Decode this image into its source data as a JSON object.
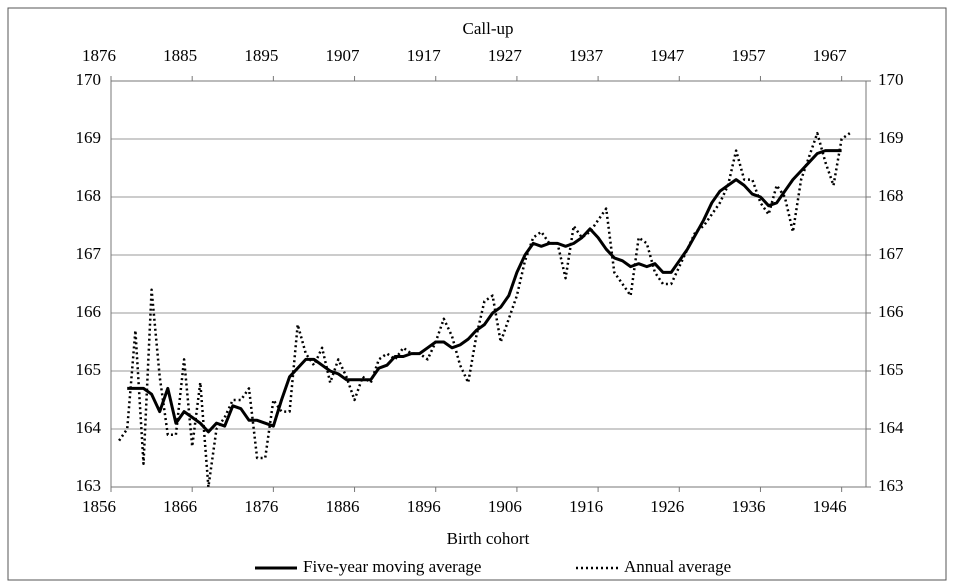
{
  "chart_data": {
    "type": "line",
    "title": "Call-up",
    "x_label": "Birth cohort",
    "x": [
      1857,
      1858,
      1859,
      1860,
      1861,
      1862,
      1863,
      1864,
      1865,
      1866,
      1867,
      1868,
      1869,
      1870,
      1871,
      1872,
      1873,
      1874,
      1875,
      1876,
      1877,
      1878,
      1879,
      1880,
      1881,
      1882,
      1883,
      1884,
      1885,
      1886,
      1887,
      1888,
      1889,
      1890,
      1891,
      1892,
      1893,
      1894,
      1895,
      1896,
      1897,
      1898,
      1899,
      1900,
      1901,
      1902,
      1903,
      1904,
      1905,
      1906,
      1907,
      1908,
      1909,
      1910,
      1911,
      1912,
      1913,
      1914,
      1915,
      1916,
      1917,
      1918,
      1919,
      1920,
      1921,
      1922,
      1923,
      1924,
      1925,
      1926,
      1927,
      1928,
      1929,
      1930,
      1931,
      1932,
      1933,
      1934,
      1935,
      1936,
      1937,
      1938,
      1939,
      1940,
      1941,
      1942,
      1943,
      1944,
      1945,
      1946,
      1947
    ],
    "series": [
      {
        "name": "Five-year moving average",
        "color": "#000000",
        "dash": "solid",
        "values": [
          null,
          164.7,
          164.7,
          164.7,
          164.6,
          164.3,
          164.7,
          164.1,
          164.3,
          164.2,
          164.1,
          163.95,
          164.1,
          164.05,
          164.4,
          164.35,
          164.15,
          164.15,
          164.1,
          164.05,
          164.5,
          164.9,
          165.05,
          165.2,
          165.2,
          165.1,
          165.0,
          164.95,
          164.85,
          164.85,
          164.85,
          164.85,
          165.05,
          165.1,
          165.25,
          165.25,
          165.3,
          165.3,
          165.4,
          165.5,
          165.5,
          165.4,
          165.45,
          165.55,
          165.7,
          165.8,
          166.0,
          166.1,
          166.3,
          166.7,
          167.0,
          167.2,
          167.15,
          167.2,
          167.2,
          167.15,
          167.2,
          167.3,
          167.45,
          167.3,
          167.1,
          166.95,
          166.9,
          166.8,
          166.85,
          166.8,
          166.85,
          166.7,
          166.7,
          166.9,
          167.1,
          167.35,
          167.6,
          167.9,
          168.1,
          168.2,
          168.3,
          168.2,
          168.05,
          168.0,
          167.85,
          167.9,
          168.1,
          168.3,
          168.45,
          168.6,
          168.75,
          168.8,
          168.8,
          168.8,
          null
        ]
      },
      {
        "name": "Annual average",
        "color": "#000000",
        "dash": "dotted",
        "values": [
          163.8,
          164.0,
          165.7,
          163.4,
          166.4,
          164.9,
          163.9,
          163.9,
          165.2,
          163.7,
          164.8,
          163.0,
          164.0,
          164.2,
          164.5,
          164.5,
          164.7,
          163.5,
          163.5,
          164.5,
          164.3,
          164.3,
          165.8,
          165.3,
          165.1,
          165.4,
          164.8,
          165.2,
          164.9,
          164.5,
          164.9,
          164.8,
          165.2,
          165.3,
          165.2,
          165.4,
          165.3,
          165.3,
          165.2,
          165.5,
          165.9,
          165.6,
          165.1,
          164.8,
          165.6,
          166.2,
          166.3,
          165.5,
          165.9,
          166.3,
          166.9,
          167.3,
          167.4,
          167.2,
          167.2,
          166.6,
          167.5,
          167.3,
          167.4,
          167.6,
          167.8,
          166.7,
          166.5,
          166.3,
          167.3,
          167.2,
          166.7,
          166.5,
          166.5,
          166.8,
          167.1,
          167.4,
          167.5,
          167.7,
          167.9,
          168.2,
          168.8,
          168.3,
          168.3,
          167.9,
          167.7,
          168.2,
          168.0,
          167.4,
          168.3,
          168.7,
          169.1,
          168.6,
          168.2,
          169.0,
          169.1
        ]
      }
    ],
    "xlim": [
      1856,
      1949
    ],
    "xticks": [
      1856,
      1866,
      1876,
      1886,
      1896,
      1906,
      1916,
      1926,
      1936,
      1946
    ],
    "x2ticks": [
      {
        "value": 1856,
        "label": "1876"
      },
      {
        "value": 1866,
        "label": "1885"
      },
      {
        "value": 1876,
        "label": "1895"
      },
      {
        "value": 1886,
        "label": "1907"
      },
      {
        "value": 1896,
        "label": "1917"
      },
      {
        "value": 1906,
        "label": "1927"
      },
      {
        "value": 1916,
        "label": "1937"
      },
      {
        "value": 1926,
        "label": "1947"
      },
      {
        "value": 1936,
        "label": "1957"
      },
      {
        "value": 1946,
        "label": "1967"
      }
    ],
    "ylim": [
      163,
      170
    ],
    "yticks": [
      163,
      164,
      165,
      166,
      167,
      168,
      169,
      170
    ],
    "y2lim": [
      163,
      170
    ],
    "y2ticks": [
      163,
      164,
      165,
      166,
      167,
      168,
      169,
      170
    ],
    "grid": true,
    "legend": "bottom"
  }
}
